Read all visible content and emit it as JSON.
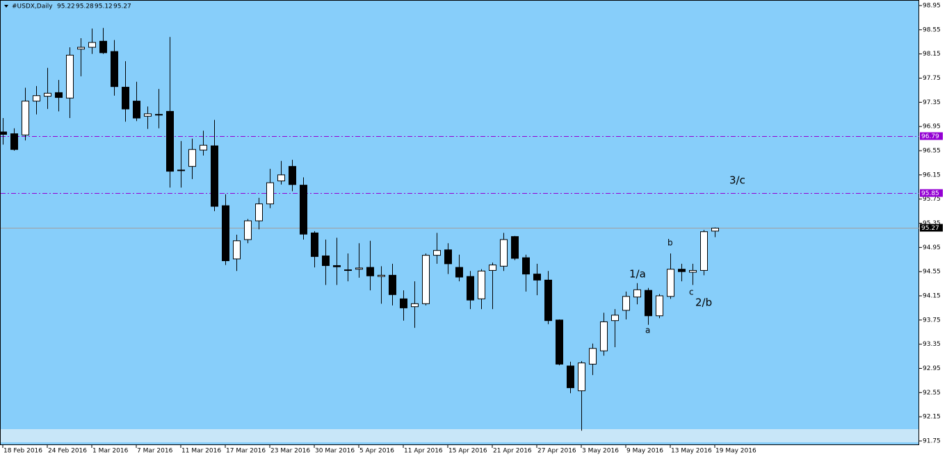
{
  "chart_data": {
    "type": "candlestick",
    "title": "#USDX,Daily",
    "header_values": [
      95.22,
      95.28,
      95.12,
      95.27
    ],
    "categories": [
      "18 Feb 2016",
      null,
      null,
      null,
      "24 Feb 2016",
      null,
      null,
      null,
      "1 Mar 2016",
      null,
      null,
      null,
      "7 Mar 2016",
      null,
      null,
      null,
      "11 Mar 2016",
      null,
      null,
      null,
      "17 Mar 2016",
      null,
      null,
      null,
      "23 Mar 2016",
      null,
      null,
      null,
      "30 Mar 2016",
      null,
      null,
      null,
      "5 Apr 2016",
      null,
      null,
      null,
      "11 Apr 2016",
      null,
      null,
      null,
      "15 Apr 2016",
      null,
      null,
      null,
      "21 Apr 2016",
      null,
      null,
      null,
      "27 Apr 2016",
      null,
      null,
      null,
      "3 May 2016",
      null,
      null,
      null,
      "9 May 2016",
      null,
      null,
      null,
      "13 May 2016",
      null,
      null,
      null,
      "19 May 2016"
    ],
    "open": [
      96.86,
      96.83,
      96.81,
      97.37,
      97.45,
      97.51,
      97.42,
      98.23,
      98.26,
      98.36,
      98.19,
      97.6,
      97.37,
      97.12,
      97.14,
      97.2,
      96.22,
      96.29,
      96.56,
      96.63,
      95.64,
      94.76,
      95.08,
      95.39,
      95.67,
      96.05,
      96.29,
      95.98,
      95.19,
      94.81,
      94.65,
      94.57,
      94.59,
      94.62,
      94.47,
      94.49,
      94.1,
      93.97,
      94.02,
      94.82,
      94.91,
      94.62,
      94.47,
      94.1,
      94.57,
      94.64,
      95.13,
      94.78,
      94.51,
      94.41,
      93.75,
      92.99,
      92.58,
      93.02,
      93.24,
      93.74,
      93.91,
      94.13,
      94.24,
      93.82,
      94.14,
      94.59,
      94.54,
      94.57,
      95.22
    ],
    "high": [
      97.09,
      96.92,
      97.59,
      97.62,
      97.92,
      97.72,
      98.26,
      98.41,
      98.57,
      98.58,
      98.38,
      98.03,
      97.69,
      97.28,
      97.57,
      98.43,
      96.71,
      96.75,
      96.88,
      97.06,
      95.83,
      95.16,
      95.42,
      95.77,
      96.25,
      96.38,
      96.4,
      96.11,
      95.22,
      95.08,
      95.11,
      94.85,
      95.02,
      95.06,
      94.64,
      94.68,
      94.24,
      94.39,
      94.85,
      95.19,
      95.02,
      94.83,
      94.56,
      94.59,
      94.7,
      95.19,
      95.14,
      94.83,
      94.68,
      94.56,
      93.76,
      93.06,
      93.07,
      93.36,
      93.87,
      93.93,
      94.22,
      94.36,
      94.28,
      94.18,
      94.85,
      94.68,
      94.68,
      95.24,
      95.28
    ],
    "low": [
      96.65,
      96.55,
      96.72,
      97.15,
      97.24,
      97.2,
      97.09,
      97.78,
      98.15,
      98.15,
      97.46,
      97.03,
      97.04,
      96.91,
      96.92,
      95.94,
      95.94,
      96.08,
      96.47,
      95.55,
      94.66,
      94.56,
      95.02,
      95.25,
      95.6,
      95.99,
      95.88,
      95.08,
      94.62,
      94.33,
      94.33,
      94.39,
      94.45,
      94.24,
      94.02,
      93.99,
      93.74,
      93.62,
      93.99,
      94.68,
      94.51,
      94.39,
      93.93,
      93.93,
      93.93,
      94.56,
      94.74,
      94.22,
      94.16,
      93.68,
      93.0,
      92.54,
      91.92,
      92.84,
      93.16,
      93.3,
      93.76,
      94.01,
      93.67,
      93.78,
      94.1,
      94.39,
      94.33,
      94.49,
      95.12
    ],
    "close": [
      96.82,
      96.57,
      97.37,
      97.46,
      97.5,
      97.43,
      98.13,
      98.26,
      98.34,
      98.17,
      97.61,
      97.24,
      97.09,
      97.16,
      97.15,
      96.21,
      96.23,
      96.57,
      96.64,
      95.63,
      94.73,
      95.06,
      95.39,
      95.67,
      96.02,
      96.15,
      95.99,
      95.17,
      94.8,
      94.65,
      94.63,
      94.58,
      94.61,
      94.48,
      94.49,
      94.17,
      93.95,
      94.02,
      94.82,
      94.9,
      94.68,
      94.46,
      94.08,
      94.56,
      94.66,
      95.08,
      94.77,
      94.51,
      94.41,
      93.74,
      93.02,
      92.63,
      93.04,
      93.28,
      93.72,
      93.83,
      94.14,
      94.25,
      93.82,
      94.15,
      94.59,
      94.55,
      94.57,
      95.21,
      95.27
    ],
    "up_color": "#ffffff",
    "down_color": "#000000",
    "background": "#87cefa",
    "ylim": [
      91.75,
      98.95
    ],
    "yticks": [
      98.95,
      98.55,
      98.15,
      97.75,
      97.35,
      96.95,
      96.55,
      96.15,
      95.75,
      95.35,
      94.95,
      94.55,
      94.15,
      93.75,
      93.35,
      92.95,
      92.55,
      92.15,
      91.75
    ],
    "levels": [
      {
        "value": 96.79,
        "color": "#9400d3",
        "style": "dashdot"
      },
      {
        "value": 95.85,
        "color": "#9400d3",
        "style": "dashdot"
      },
      {
        "value": 95.27,
        "color": "#000000",
        "style": "solid"
      }
    ],
    "annotations": [
      "3/c",
      "1/a",
      "b",
      "a",
      "c",
      "2/b"
    ]
  }
}
